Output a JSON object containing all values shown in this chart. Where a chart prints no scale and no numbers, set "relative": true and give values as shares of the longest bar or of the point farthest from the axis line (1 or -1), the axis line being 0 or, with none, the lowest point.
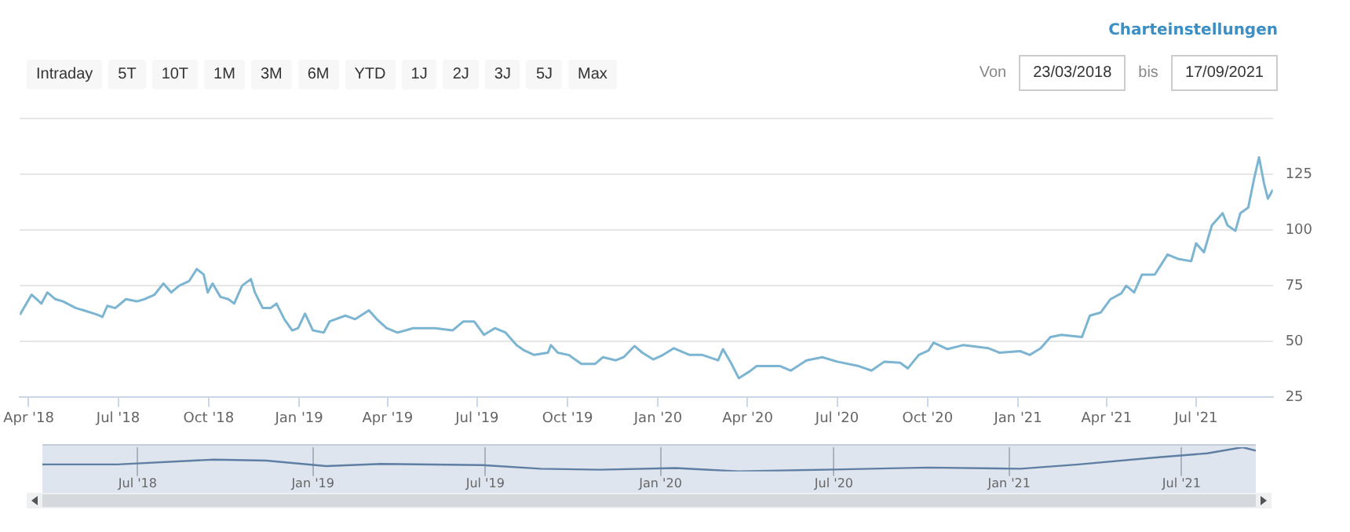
{
  "chart_data": [
    {
      "type": "line",
      "annotations": [
        "Charteinstellungen",
        "Intraday",
        "5T",
        "10T",
        "1M",
        "3M",
        "6M",
        "YTD",
        "1J",
        "2J",
        "3J",
        "5J",
        "Max",
        "Von",
        "23/03/2018",
        "bis",
        "17/09/2021"
      ],
      "x": [
        "2018-03-23",
        "2018-04-04",
        "2018-04-09",
        "2018-04-14",
        "2018-04-20",
        "2018-04-28",
        "2018-05-06",
        "2018-05-19",
        "2018-05-27",
        "2018-06-10",
        "2018-06-15",
        "2018-06-20",
        "2018-06-28",
        "2018-07-09",
        "2018-07-20",
        "2018-07-28",
        "2018-08-07",
        "2018-08-16",
        "2018-08-24",
        "2018-09-01",
        "2018-09-11",
        "2018-09-19",
        "2018-09-26",
        "2018-09-30",
        "2018-10-05",
        "2018-10-13",
        "2018-10-21",
        "2018-10-27",
        "2018-11-04",
        "2018-11-13",
        "2018-11-17",
        "2018-11-25",
        "2018-12-03",
        "2018-12-09",
        "2018-12-17",
        "2018-12-25",
        "2018-12-31",
        "2019-01-07",
        "2019-01-15",
        "2019-01-26",
        "2019-02-01",
        "2019-02-17",
        "2019-02-27",
        "2019-03-13",
        "2019-03-21",
        "2019-03-31",
        "2019-04-11",
        "2019-04-27",
        "2019-05-19",
        "2019-06-06",
        "2019-06-17",
        "2019-06-28",
        "2019-07-08",
        "2019-07-19",
        "2019-07-30",
        "2019-08-10",
        "2019-08-18",
        "2019-08-28",
        "2019-09-11",
        "2019-09-14",
        "2019-09-21",
        "2019-10-02",
        "2019-10-15",
        "2019-10-29",
        "2019-11-06",
        "2019-11-19",
        "2019-11-27",
        "2019-12-08",
        "2019-12-16",
        "2019-12-27",
        "2020-01-06",
        "2020-01-17",
        "2020-02-02",
        "2020-02-15",
        "2020-03-02",
        "2020-03-07",
        "2020-03-15",
        "2020-03-23",
        "2020-04-03",
        "2020-04-10",
        "2020-05-04",
        "2020-05-15",
        "2020-05-31",
        "2020-06-16",
        "2020-07-01",
        "2020-07-23",
        "2020-08-05",
        "2020-08-18",
        "2020-09-03",
        "2020-09-11",
        "2020-09-22",
        "2020-10-02",
        "2020-10-07",
        "2020-10-21",
        "2020-11-06",
        "2020-12-02",
        "2020-12-13",
        "2021-01-03",
        "2021-01-13",
        "2021-01-24",
        "2021-02-03",
        "2021-02-14",
        "2021-03-07",
        "2021-03-15",
        "2021-03-26",
        "2021-04-05",
        "2021-04-16",
        "2021-04-21",
        "2021-04-29",
        "2021-05-07",
        "2021-05-20",
        "2021-06-02",
        "2021-06-13",
        "2021-06-26",
        "2021-07-01",
        "2021-07-09",
        "2021-07-17",
        "2021-07-28",
        "2021-08-02",
        "2021-08-10",
        "2021-08-15",
        "2021-08-23",
        "2021-08-29",
        "2021-09-03",
        "2021-09-08",
        "2021-09-12",
        "2021-09-17"
      ],
      "series": [
        {
          "color": "#7cb5d2",
          "values": [
            62,
            71,
            69,
            67,
            72,
            69,
            68,
            65,
            64,
            62,
            61,
            66,
            65,
            69,
            68,
            69,
            71,
            76,
            72,
            75,
            77,
            82.5,
            80,
            72,
            76,
            70,
            69,
            67,
            75,
            78,
            72,
            65,
            65,
            67,
            60,
            55,
            56,
            62.5,
            55,
            54,
            59,
            61.6,
            60,
            64,
            60,
            56,
            54,
            56,
            56,
            55,
            59,
            59,
            53,
            56,
            54,
            48.4,
            46,
            44,
            45,
            48.4,
            45,
            44,
            40,
            40,
            43,
            41.6,
            43,
            48,
            45,
            42,
            44,
            47,
            44,
            44,
            41.6,
            46.6,
            40.5,
            33.6,
            36.6,
            39,
            39,
            37,
            41.6,
            43,
            41,
            39,
            37,
            41,
            40.5,
            38,
            44,
            46,
            49.5,
            46.6,
            48.4,
            47,
            45,
            45.7,
            44,
            47,
            52,
            53,
            52,
            61.6,
            63,
            69,
            71.6,
            75,
            72,
            80,
            80,
            89,
            87,
            86,
            94,
            90,
            102,
            107.5,
            102,
            99.6,
            107.5,
            110,
            123,
            132.5,
            121,
            114,
            118
          ]
        }
      ],
      "xlim": [
        "2018-03-23",
        "2021-09-17"
      ],
      "xticks": [
        {
          "value": "2018-04-01",
          "label": "Apr '18"
        },
        {
          "value": "2018-07-01",
          "label": "Jul '18"
        },
        {
          "value": "2018-10-01",
          "label": "Oct '18"
        },
        {
          "value": "2019-01-01",
          "label": "Jan '19"
        },
        {
          "value": "2019-04-01",
          "label": "Apr '19"
        },
        {
          "value": "2019-07-01",
          "label": "Jul '19"
        },
        {
          "value": "2019-10-01",
          "label": "Oct '19"
        },
        {
          "value": "2020-01-01",
          "label": "Jan '20"
        },
        {
          "value": "2020-04-01",
          "label": "Apr '20"
        },
        {
          "value": "2020-07-01",
          "label": "Jul '20"
        },
        {
          "value": "2020-10-01",
          "label": "Oct '20"
        },
        {
          "value": "2021-01-01",
          "label": "Jan '21"
        },
        {
          "value": "2021-04-01",
          "label": "Apr '21"
        },
        {
          "value": "2021-07-01",
          "label": "Jul '21"
        }
      ],
      "ylim": [
        25,
        150
      ],
      "yticks": [
        25,
        50,
        75,
        100,
        125,
        {
          "value": 150,
          "label": null
        }
      ],
      "grid": "y",
      "marker": "none",
      "line_style": "solid"
    },
    {
      "type": "line",
      "relative": true,
      "x": [
        "2018-03-23",
        "2018-06-10",
        "2018-09-19",
        "2018-11-13",
        "2019-01-15",
        "2019-03-13",
        "2019-06-28",
        "2019-08-28",
        "2019-10-29",
        "2020-01-17",
        "2020-03-23",
        "2020-07-01",
        "2020-10-07",
        "2021-01-13",
        "2021-03-15",
        "2021-06-02",
        "2021-07-28",
        "2021-09-03",
        "2021-09-17"
      ],
      "series": [
        {
          "color": "#5f7ea3",
          "values": [
            0.29,
            0.29,
            0.49,
            0.45,
            0.22,
            0.31,
            0.26,
            0.11,
            0.07,
            0.14,
            0,
            0.08,
            0.16,
            0.11,
            0.29,
            0.57,
            0.75,
            1,
            0.86
          ]
        }
      ],
      "xlim": [
        "2018-03-23",
        "2021-09-17"
      ],
      "xticks": [
        {
          "value": "2018-07-01",
          "label": "Jul '18"
        },
        {
          "value": "2019-01-01",
          "label": "Jan '19"
        },
        {
          "value": "2019-07-01",
          "label": "Jul '19"
        },
        {
          "value": "2020-01-01",
          "label": "Jan '20"
        },
        {
          "value": "2020-07-01",
          "label": "Jul '20"
        },
        {
          "value": "2021-01-01",
          "label": "Jan '21"
        },
        {
          "value": "2021-07-01",
          "label": "Jul '21"
        }
      ],
      "grid": "x",
      "marker": "none",
      "line_style": "solid",
      "tick_labels": "x"
    }
  ]
}
